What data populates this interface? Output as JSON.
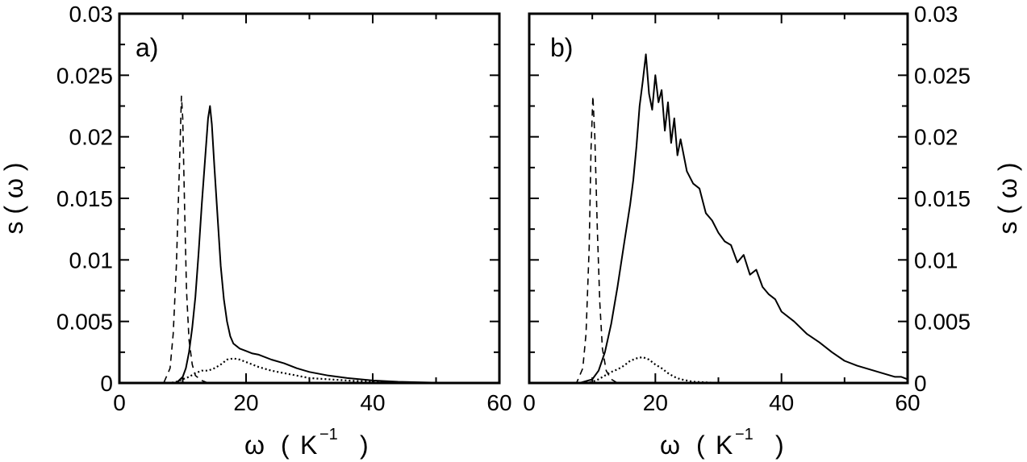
{
  "figure": {
    "xlabel_symbol": "ω",
    "xlabel_unit": "K",
    "xlabel_exponent": "−1",
    "ylabel_left": "s ( ω )",
    "ylabel_right": "s ( ω )"
  },
  "chart_data": [
    {
      "type": "line",
      "panel_label": "a)",
      "xlabel": "ω ( K⁻¹ )",
      "ylabel": "s ( ω )",
      "xlim": [
        0,
        60
      ],
      "ylim": [
        0,
        0.03
      ],
      "x_ticks": [
        "0",
        "20",
        "40",
        "60"
      ],
      "y_ticks": [
        "0",
        "0.005",
        "0.01",
        "0.015",
        "0.02",
        "0.025",
        "0.03"
      ],
      "y_tick_side": "left",
      "grid": false,
      "series": [
        {
          "style": "dashed",
          "x": [
            0,
            7,
            8,
            8.5,
            9,
            9.5,
            9.8,
            10,
            10.3,
            10.6,
            11,
            11.5,
            12,
            13,
            14,
            60
          ],
          "y": [
            0,
            0,
            0.0012,
            0.004,
            0.0095,
            0.018,
            0.0233,
            0.0215,
            0.014,
            0.0075,
            0.0035,
            0.0015,
            0.0006,
            0.0002,
            0,
            0
          ]
        },
        {
          "style": "solid",
          "x": [
            0,
            9,
            10,
            10.5,
            11,
            11.5,
            12,
            12.5,
            13,
            13.5,
            14,
            14.3,
            14.6,
            15,
            15.5,
            16,
            16.5,
            17,
            17.5,
            18,
            19,
            20,
            21,
            22,
            24,
            26,
            28,
            30,
            33,
            36,
            40,
            44,
            48,
            52,
            60
          ],
          "y": [
            0,
            0,
            0.0005,
            0.0012,
            0.0025,
            0.0045,
            0.007,
            0.0105,
            0.0145,
            0.018,
            0.0215,
            0.0225,
            0.021,
            0.0175,
            0.0135,
            0.0095,
            0.0068,
            0.005,
            0.0038,
            0.0032,
            0.0028,
            0.0026,
            0.0024,
            0.0023,
            0.0019,
            0.0016,
            0.0012,
            0.0009,
            0.0006,
            0.0004,
            0.0002,
            0.0001,
            5e-05,
            0,
            0
          ]
        },
        {
          "style": "dotted",
          "x": [
            0,
            8,
            9,
            10,
            11,
            12,
            13,
            14,
            15,
            16,
            17,
            18,
            19,
            20,
            21,
            22,
            24,
            26,
            28,
            30,
            33,
            36,
            40,
            44,
            48,
            52,
            60
          ],
          "y": [
            0,
            0,
            0.0001,
            0.0003,
            0.0005,
            0.0008,
            0.001,
            0.001,
            0.0012,
            0.0015,
            0.0019,
            0.002,
            0.0019,
            0.0017,
            0.0015,
            0.0013,
            0.001,
            0.0008,
            0.0006,
            0.0004,
            0.0003,
            0.0002,
            0.0001,
            5e-05,
            0,
            0,
            0
          ]
        }
      ]
    },
    {
      "type": "line",
      "panel_label": "b)",
      "xlabel": "ω ( K⁻¹ )",
      "ylabel": "s ( ω )",
      "xlim": [
        0,
        60
      ],
      "ylim": [
        0,
        0.03
      ],
      "x_ticks": [
        "0",
        "20",
        "40",
        "60"
      ],
      "y_ticks": [
        "0",
        "0.005",
        "0.01",
        "0.015",
        "0.02",
        "0.025",
        "0.03"
      ],
      "y_tick_side": "right",
      "grid": false,
      "series": [
        {
          "style": "dashed",
          "x": [
            0,
            7.5,
            8.5,
            9,
            9.5,
            9.8,
            10.1,
            10.4,
            10.8,
            11.2,
            11.6,
            12.2,
            13,
            14,
            60
          ],
          "y": [
            0,
            0,
            0.0012,
            0.004,
            0.011,
            0.019,
            0.0233,
            0.02,
            0.0125,
            0.0065,
            0.0028,
            0.001,
            0.0003,
            0,
            0
          ]
        },
        {
          "style": "solid",
          "x": [
            0,
            8,
            10,
            11,
            12,
            13,
            14,
            15,
            16,
            16.5,
            17,
            17.5,
            18,
            18.5,
            19,
            19.5,
            20,
            20.5,
            21,
            21.5,
            22,
            22.5,
            23,
            23.5,
            24,
            25,
            26,
            27,
            28,
            29,
            30,
            31,
            32,
            33,
            34,
            35,
            36,
            37,
            38,
            39,
            40,
            42,
            44,
            46,
            48,
            50,
            52,
            54,
            56,
            58,
            59,
            60
          ],
          "y": [
            0,
            0,
            0.0003,
            0.001,
            0.0025,
            0.0048,
            0.0078,
            0.0112,
            0.0145,
            0.0165,
            0.0192,
            0.0225,
            0.0245,
            0.0267,
            0.0235,
            0.0222,
            0.025,
            0.0228,
            0.0238,
            0.0205,
            0.0228,
            0.0195,
            0.0215,
            0.0185,
            0.0198,
            0.0172,
            0.0162,
            0.0158,
            0.0138,
            0.0132,
            0.0122,
            0.0115,
            0.0112,
            0.0098,
            0.0104,
            0.0088,
            0.0092,
            0.0078,
            0.0072,
            0.0068,
            0.0058,
            0.005,
            0.004,
            0.0033,
            0.0025,
            0.0018,
            0.0014,
            0.0011,
            0.0008,
            0.0005,
            0.0005,
            0.0003
          ]
        },
        {
          "style": "dotted",
          "x": [
            0,
            9,
            10,
            11,
            12,
            13,
            14,
            15,
            16,
            17,
            18,
            19,
            20,
            21,
            22,
            23,
            24,
            26,
            28,
            30,
            60
          ],
          "y": [
            0,
            0,
            0.0001,
            0.0003,
            0.0006,
            0.0009,
            0.0011,
            0.0014,
            0.0018,
            0.002,
            0.0021,
            0.0019,
            0.0015,
            0.0012,
            0.0008,
            0.0005,
            0.0003,
            0.0001,
            5e-05,
            0,
            0
          ]
        }
      ]
    }
  ]
}
